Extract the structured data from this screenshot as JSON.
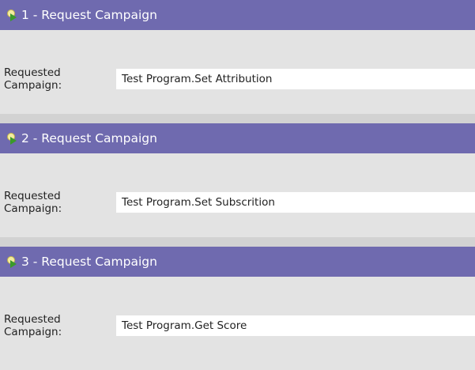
{
  "sections": [
    {
      "title": "1 - Request Campaign",
      "label": "Requested Campaign:",
      "value": "Test Program.Set Attribution"
    },
    {
      "title": "2 - Request Campaign",
      "label": "Requested Campaign:",
      "value": "Test Program.Set Subscrition"
    },
    {
      "title": "3 - Request Campaign",
      "label": "Requested Campaign:",
      "value": "Test Program.Get Score"
    }
  ],
  "colors": {
    "header": "#6f6aaf",
    "body": "#e3e3e3"
  },
  "icon": "request-campaign-flow-icon"
}
